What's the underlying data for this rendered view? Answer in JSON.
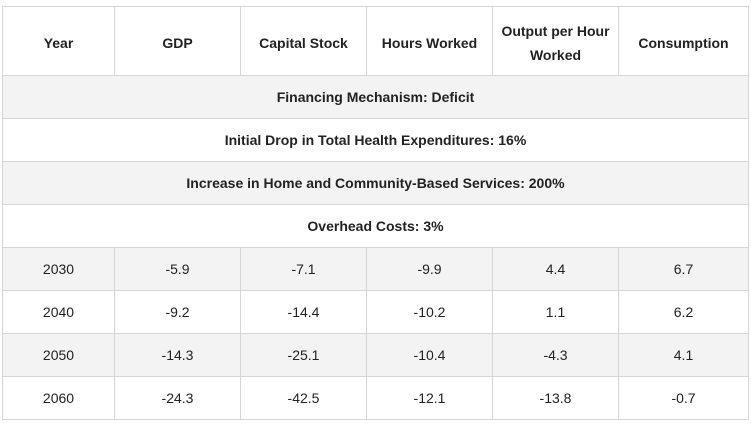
{
  "captions": [
    "Financing Mechanism: Deficit",
    "Initial Drop in Total Health Expenditures: 16%",
    "Increase in Home and Community-Based Services: 200%",
    "Overhead Costs: 3%"
  ],
  "columns": [
    "Year",
    "GDP",
    "Capital Stock",
    "Hours Worked",
    "Output per Hour Worked",
    "Consumption"
  ],
  "rows": [
    [
      "2030",
      "-5.9",
      "-7.1",
      "-9.9",
      "4.4",
      "6.7"
    ],
    [
      "2040",
      "-9.2",
      "-14.4",
      "-10.2",
      "1.1",
      "6.2"
    ],
    [
      "2050",
      "-14.3",
      "-25.1",
      "-10.4",
      "-4.3",
      "4.1"
    ],
    [
      "2060",
      "-24.3",
      "-42.5",
      "-12.1",
      "-13.8",
      "-0.7"
    ]
  ]
}
